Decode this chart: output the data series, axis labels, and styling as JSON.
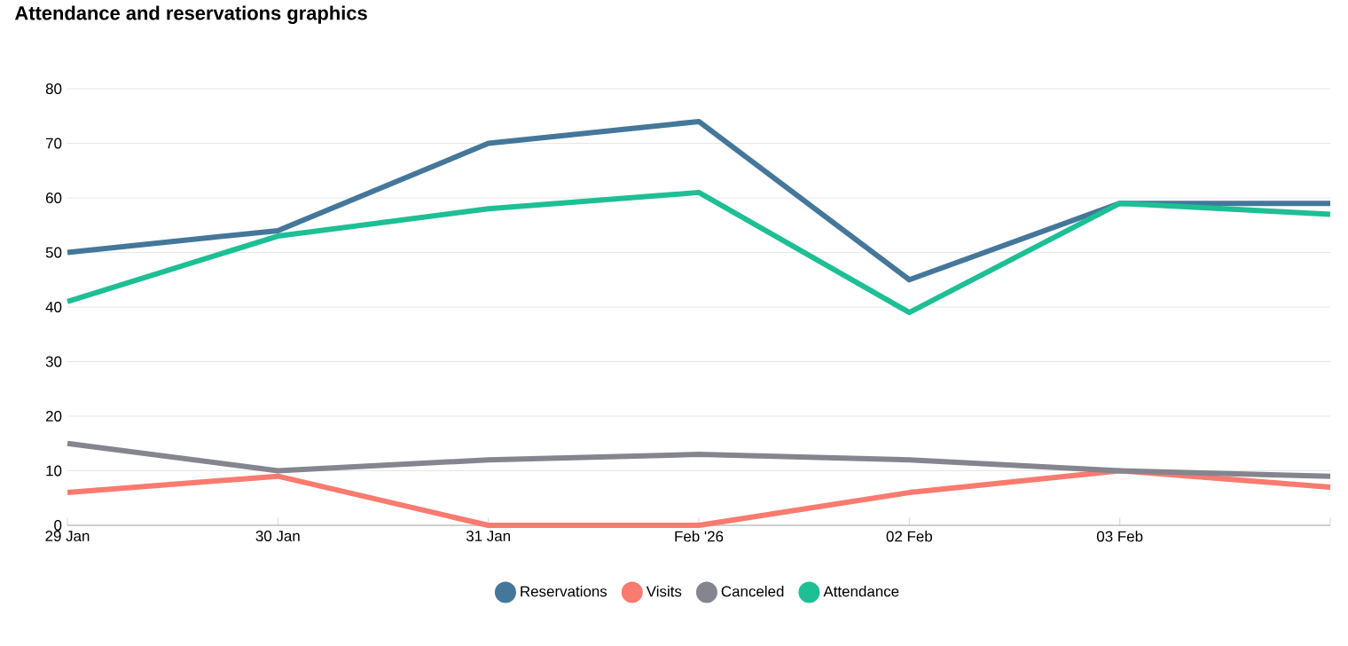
{
  "chart_data": {
    "type": "line",
    "title": "Attendance and reservations graphics",
    "categories": [
      "29 Jan",
      "30 Jan",
      "31 Jan",
      "Feb '26",
      "02 Feb",
      "03 Feb",
      null
    ],
    "series": [
      {
        "name": "Reservations",
        "color": "#44779a",
        "values": [
          50,
          54,
          70,
          74,
          45,
          59,
          59
        ]
      },
      {
        "name": "Visits",
        "color": "#f97a6f",
        "values": [
          6,
          9,
          0,
          0,
          6,
          10,
          7
        ]
      },
      {
        "name": "Canceled",
        "color": "#85858f",
        "values": [
          15,
          10,
          12,
          13,
          12,
          10,
          9
        ]
      },
      {
        "name": "Attendance",
        "color": "#1dbf94",
        "values": [
          41,
          53,
          58,
          61,
          39,
          59,
          57
        ]
      }
    ],
    "ylim": [
      0,
      80
    ],
    "yticks": [
      0,
      10,
      20,
      30,
      40,
      50,
      60,
      70,
      80
    ],
    "grid": "y",
    "legend": "bottom"
  }
}
